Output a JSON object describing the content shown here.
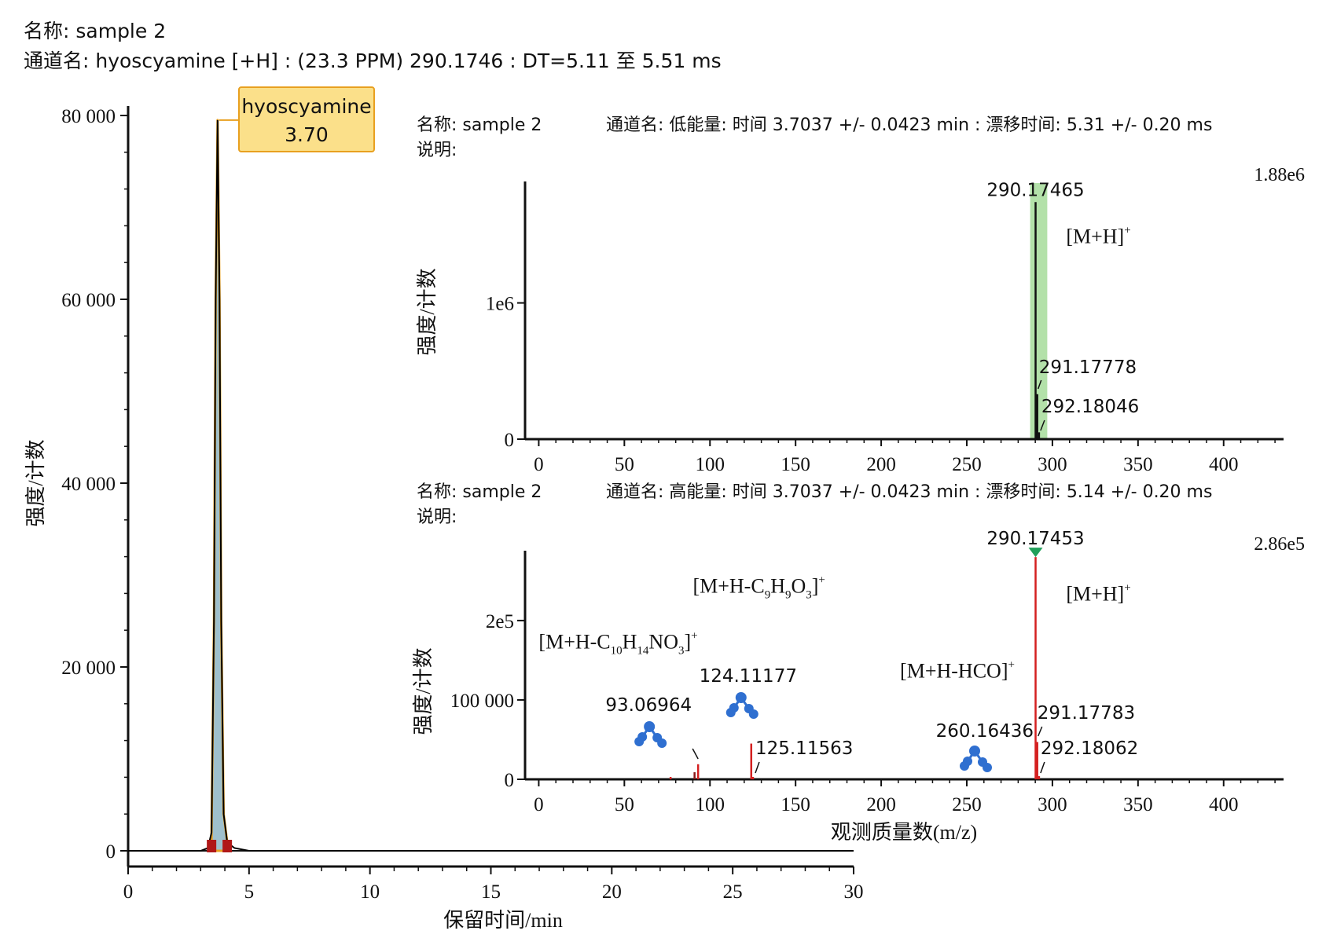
{
  "header": {
    "name_line": "名称: sample 2",
    "channel_line": "通道名: hyoscyamine [+H] : (23.3 PPM) 290.1746 : DT=5.11 至 5.51 ms"
  },
  "colors": {
    "trace": "#000000",
    "peak_fill": "#9fc0cc",
    "peak_outline": "#e8a020",
    "baseline_marker": "#b01818",
    "label_box_fill": "#fbe08a",
    "label_box_border": "#e8a020",
    "highlight": "#a6dc9a",
    "hi_energy_peak": "#d42020",
    "fragment_icon": "#2f6fd0",
    "apex_marker": "#21a05a"
  },
  "chart_data": [
    {
      "id": "chromatogram",
      "type": "line",
      "x_label": "保留时间/min",
      "y_label": "强度/计数",
      "xlim": [
        0,
        30
      ],
      "ylim": [
        0,
        80000
      ],
      "x_ticks": [
        0,
        5,
        10,
        15,
        20,
        25,
        30
      ],
      "x_tick_labels": [
        "0",
        "5",
        "10",
        "15",
        "20",
        "25",
        "30"
      ],
      "y_ticks": [
        0,
        20000,
        40000,
        60000,
        80000
      ],
      "y_tick_labels": [
        "0",
        "20 000",
        "40 000",
        "60 000",
        "80 000"
      ],
      "series": [
        {
          "x": [
            0,
            3.0,
            3.3,
            3.45,
            3.55,
            3.62,
            3.7,
            3.78,
            3.85,
            3.95,
            4.1,
            4.4,
            5.0,
            30
          ],
          "y": [
            0,
            0,
            300,
            2000,
            25000,
            60000,
            79500,
            60000,
            25000,
            4000,
            900,
            300,
            0,
            0
          ]
        }
      ],
      "peak_label": {
        "name": "hyoscyamine",
        "rt": "3.70",
        "x": 3.7,
        "y": 79500
      },
      "integration": {
        "start": 3.45,
        "end": 4.1
      }
    },
    {
      "id": "low-energy-spectrum",
      "type": "bar",
      "info_name": "名称: sample 2",
      "info_channel": "通道名: 低能量: 时间 3.7037 +/- 0.0423 min : 漂移时间: 5.31 +/- 0.20 ms",
      "info_desc": "说明:",
      "y_label": "强度/计数",
      "max_label": "1.88e6",
      "xlim": [
        -8,
        435
      ],
      "ylim": [
        0,
        1880000
      ],
      "x_ticks": [
        0,
        50,
        100,
        150,
        200,
        250,
        300,
        350,
        400
      ],
      "x_tick_labels": [
        "0",
        "50",
        "100",
        "150",
        "200",
        "250",
        "300",
        "350",
        "400"
      ],
      "y_ticks": [
        0,
        1000000
      ],
      "y_tick_labels": [
        "0",
        "1e6"
      ],
      "highlight_range": [
        287,
        297
      ],
      "peaks": [
        {
          "mz": 290.17465,
          "intensity": 1740000,
          "label": "290.17465"
        },
        {
          "mz": 291.17778,
          "intensity": 330000,
          "label": "291.17778"
        },
        {
          "mz": 292.18046,
          "intensity": 50000,
          "label": "292.18046"
        }
      ],
      "annotations": [
        {
          "base": "[M+H]",
          "sup": "+",
          "x": 308,
          "y": 1440000
        }
      ]
    },
    {
      "id": "high-energy-spectrum",
      "type": "bar",
      "info_name": "名称: sample 2",
      "info_channel": "通道名: 高能量: 时间 3.7037 +/- 0.0423 min : 漂移时间: 5.14 +/- 0.20 ms",
      "info_desc": "说明:",
      "x_label": "观测质量数(m/z)",
      "y_label": "强度/计数",
      "max_label": "2.86e5",
      "xlim": [
        -8,
        435
      ],
      "ylim": [
        0,
        286000
      ],
      "x_ticks": [
        0,
        50,
        100,
        150,
        200,
        250,
        300,
        350,
        400
      ],
      "x_tick_labels": [
        "0",
        "50",
        "100",
        "150",
        "200",
        "250",
        "300",
        "350",
        "400"
      ],
      "y_ticks": [
        0,
        100000,
        200000
      ],
      "y_tick_labels": [
        "0",
        "100 000",
        "2e5"
      ],
      "peaks": [
        {
          "mz": 77.0,
          "intensity": 3000
        },
        {
          "mz": 91.0,
          "intensity": 9000
        },
        {
          "mz": 93.06964,
          "intensity": 19000,
          "label": "93.06964"
        },
        {
          "mz": 124.11177,
          "intensity": 45000,
          "label": "124.11177"
        },
        {
          "mz": 125.11563,
          "intensity": 3000,
          "label": "125.11563"
        },
        {
          "mz": 290.17453,
          "intensity": 280000,
          "label": "290.17453"
        },
        {
          "mz": 291.17783,
          "intensity": 47000,
          "label": "291.17783"
        },
        {
          "mz": 292.18062,
          "intensity": 4000,
          "label": "292.18062"
        }
      ],
      "annotations": [
        {
          "base": "[M+H-C",
          "parts": [
            [
              "9",
              "sub"
            ],
            [
              "H",
              "base"
            ],
            [
              "9",
              "sub"
            ],
            [
              "O",
              "base"
            ],
            [
              "3",
              "sub"
            ],
            [
              "]",
              "base"
            ],
            [
              "+",
              "sup"
            ]
          ],
          "x": 90,
          "y": 235000
        },
        {
          "base": "[M+H-C",
          "parts": [
            [
              "10",
              "sub"
            ],
            [
              "H",
              "base"
            ],
            [
              "14",
              "sub"
            ],
            [
              "NO",
              "base"
            ],
            [
              "3",
              "sub"
            ],
            [
              "]",
              "base"
            ],
            [
              "+",
              "sup"
            ]
          ],
          "x": 0,
          "y": 165000
        },
        {
          "base": "[M+H-HCO]",
          "parts": [
            [
              "+",
              "sup"
            ]
          ],
          "x": 211,
          "y": 128000
        },
        {
          "base": "[M+H]",
          "parts": [
            [
              "+",
              "sup"
            ]
          ],
          "x": 308,
          "y": 225000
        }
      ]
    }
  ]
}
